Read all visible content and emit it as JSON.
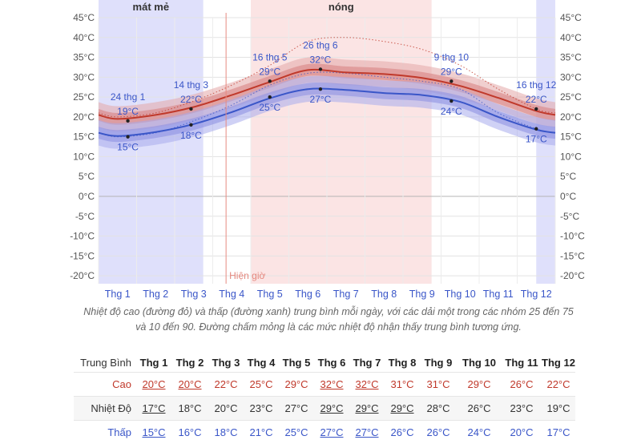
{
  "chart_data": {
    "type": "area",
    "months": [
      "Thg 1",
      "Thg 2",
      "Thg 3",
      "Thg 4",
      "Thg 5",
      "Thg 6",
      "Thg 7",
      "Thg 8",
      "Thg 9",
      "Thg 10",
      "Thg 11",
      "Thg 12"
    ],
    "y_ticks": [
      "45°C",
      "40°C",
      "35°C",
      "30°C",
      "25°C",
      "20°C",
      "15°C",
      "10°C",
      "5°C",
      "0°C",
      "-5°C",
      "-10°C",
      "-15°C",
      "-20°C"
    ],
    "ylim": [
      -22,
      45
    ],
    "series": [
      {
        "key": "high",
        "color": "#c0392b",
        "values": [
          19.5,
          20.5,
          22.5,
          25.5,
          28.8,
          31.8,
          31.2,
          30.8,
          29.8,
          27.8,
          24.8,
          21.5
        ]
      },
      {
        "key": "low",
        "color": "#3a56c8",
        "values": [
          15.2,
          16.2,
          18.2,
          21.2,
          24.7,
          27.0,
          26.8,
          26.0,
          25.5,
          23.8,
          20.0,
          16.8
        ]
      }
    ],
    "feels_like_high": [
      20,
      21,
      24,
      28,
      33,
      39,
      40,
      39,
      37,
      33,
      27,
      22
    ],
    "feels_like_low": [
      15,
      16,
      19,
      23,
      28,
      31,
      31,
      30,
      29,
      27,
      21,
      17
    ],
    "seasons": [
      {
        "label": "mát mẻ",
        "start": 0.0,
        "end": 2.75,
        "color": "#dfe0fb"
      },
      {
        "label": "nóng",
        "start": 4.0,
        "end": 8.75,
        "color": "#fbe4e4"
      },
      {
        "label": "",
        "start": 11.5,
        "end": 12.0,
        "color": "#dfe0fb"
      }
    ],
    "now_marker": {
      "label": "Hiện giờ",
      "month_pos": 3.35
    },
    "annotations": [
      {
        "date": "24 thg 1",
        "value_label": "19°C",
        "value": 19,
        "series": "high",
        "month_pos": 0.77
      },
      {
        "date": "",
        "value_label": "15°C",
        "value": 15,
        "series": "low",
        "month_pos": 0.77
      },
      {
        "date": "14 thg 3",
        "value_label": "22°C",
        "value": 22,
        "series": "high",
        "month_pos": 2.43
      },
      {
        "date": "",
        "value_label": "18°C",
        "value": 18,
        "series": "low",
        "month_pos": 2.43
      },
      {
        "date": "16 thg 5",
        "value_label": "29°C",
        "value": 29,
        "series": "high",
        "month_pos": 4.5
      },
      {
        "date": "",
        "value_label": "25°C",
        "value": 25,
        "series": "low",
        "month_pos": 4.5
      },
      {
        "date": "26 thg 6",
        "value_label": "32°C",
        "value": 32,
        "series": "high",
        "month_pos": 5.83
      },
      {
        "date": "",
        "value_label": "27°C",
        "value": 27,
        "series": "low",
        "month_pos": 5.83
      },
      {
        "date": "9 thg 10",
        "value_label": "29°C",
        "value": 29,
        "series": "high",
        "month_pos": 9.27
      },
      {
        "date": "",
        "value_label": "24°C",
        "value": 24,
        "series": "low",
        "month_pos": 9.27
      },
      {
        "date": "16 thg 12",
        "value_label": "22°C",
        "value": 22,
        "series": "high",
        "month_pos": 11.5
      },
      {
        "date": "",
        "value_label": "17°C",
        "value": 17,
        "series": "low",
        "month_pos": 11.5
      }
    ]
  },
  "caption": "Nhiệt độ cao (đường đỏ) và thấp (đường xanh) trung bình mỗi ngày, với các dải một trong các nhóm 25 đến 75 và 10 đến 90. Đường chấm mỏng là các mức nhiệt độ nhận thấy trung bình tương ứng.",
  "table": {
    "corner": "Trung Bình",
    "rows": [
      {
        "label": "Cao",
        "values": [
          "20°C",
          "20°C",
          "22°C",
          "25°C",
          "29°C",
          "32°C",
          "32°C",
          "31°C",
          "31°C",
          "29°C",
          "26°C",
          "22°C"
        ]
      },
      {
        "label": "Nhiệt Độ",
        "values": [
          "17°C",
          "18°C",
          "20°C",
          "23°C",
          "27°C",
          "29°C",
          "29°C",
          "29°C",
          "28°C",
          "26°C",
          "23°C",
          "19°C"
        ]
      },
      {
        "label": "Thấp",
        "values": [
          "15°C",
          "16°C",
          "18°C",
          "21°C",
          "25°C",
          "27°C",
          "27°C",
          "26°C",
          "26°C",
          "24°C",
          "20°C",
          "17°C"
        ]
      }
    ]
  }
}
